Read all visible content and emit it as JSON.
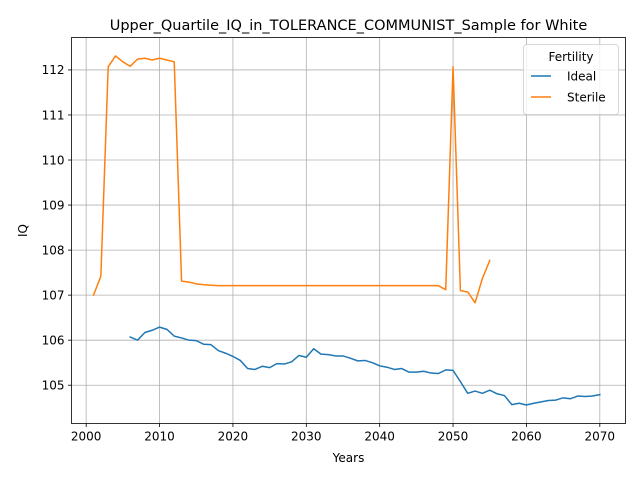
{
  "chart_data": {
    "type": "line",
    "title": "Upper_Quartile_IQ_in_TOLERANCE_COMMUNIST_Sample for White",
    "xlabel": "Years",
    "ylabel": "IQ",
    "xlim": [
      1998,
      2073.5
    ],
    "ylim": [
      104.15,
      112.72
    ],
    "xticks": [
      2000,
      2010,
      2020,
      2030,
      2040,
      2050,
      2060,
      2070
    ],
    "yticks": [
      105,
      106,
      107,
      108,
      109,
      110,
      111,
      112
    ],
    "grid": true,
    "legend": {
      "title": "Fertility",
      "placement": "top-right"
    },
    "series": [
      {
        "name": "Ideal",
        "color": "#1f77b4",
        "x": [
          2006,
          2007,
          2008,
          2009,
          2010,
          2011,
          2012,
          2013,
          2014,
          2015,
          2016,
          2017,
          2018,
          2019,
          2020,
          2021,
          2022,
          2023,
          2024,
          2025,
          2026,
          2027,
          2028,
          2029,
          2030,
          2031,
          2032,
          2033,
          2034,
          2035,
          2036,
          2037,
          2038,
          2039,
          2040,
          2041,
          2042,
          2043,
          2044,
          2045,
          2046,
          2047,
          2048,
          2049,
          2050,
          2051,
          2052,
          2053,
          2054,
          2055,
          2056,
          2057,
          2058,
          2059,
          2060,
          2061,
          2062,
          2063,
          2064,
          2065,
          2066,
          2067,
          2068,
          2069,
          2070
        ],
        "y": [
          106.07,
          106.0,
          106.17,
          106.22,
          106.29,
          106.24,
          106.09,
          106.05,
          106.0,
          105.99,
          105.91,
          105.9,
          105.77,
          105.71,
          105.64,
          105.55,
          105.37,
          105.35,
          105.42,
          105.39,
          105.48,
          105.47,
          105.52,
          105.66,
          105.62,
          105.81,
          105.69,
          105.68,
          105.65,
          105.65,
          105.6,
          105.54,
          105.55,
          105.5,
          105.43,
          105.4,
          105.35,
          105.37,
          105.29,
          105.29,
          105.31,
          105.27,
          105.26,
          105.34,
          105.33,
          105.08,
          104.82,
          104.87,
          104.82,
          104.89,
          104.81,
          104.77,
          104.57,
          104.6,
          104.56,
          104.6,
          104.63,
          104.66,
          104.67,
          104.72,
          104.7,
          104.76,
          104.75,
          104.76,
          104.79
        ]
      },
      {
        "name": "Sterile",
        "color": "#ff7f0e",
        "x": [
          2001,
          2002,
          2003,
          2004,
          2005,
          2006,
          2007,
          2008,
          2009,
          2010,
          2011,
          2012,
          2013,
          2014,
          2015,
          2016,
          2017,
          2018,
          2019,
          2020,
          2021,
          2022,
          2023,
          2024,
          2025,
          2026,
          2027,
          2028,
          2029,
          2030,
          2031,
          2032,
          2033,
          2034,
          2035,
          2036,
          2037,
          2038,
          2039,
          2040,
          2041,
          2042,
          2043,
          2044,
          2045,
          2046,
          2047,
          2048,
          2049,
          2050,
          2051,
          2052,
          2053,
          2054,
          2055
        ],
        "y": [
          107.0,
          107.42,
          112.07,
          112.31,
          112.18,
          112.08,
          112.24,
          112.26,
          112.22,
          112.26,
          112.22,
          112.18,
          107.31,
          107.29,
          107.25,
          107.23,
          107.22,
          107.21,
          107.21,
          107.21,
          107.21,
          107.21,
          107.21,
          107.21,
          107.21,
          107.21,
          107.21,
          107.21,
          107.21,
          107.21,
          107.21,
          107.21,
          107.21,
          107.21,
          107.21,
          107.21,
          107.21,
          107.21,
          107.21,
          107.21,
          107.21,
          107.21,
          107.21,
          107.21,
          107.21,
          107.21,
          107.21,
          107.21,
          107.12,
          112.07,
          107.1,
          107.07,
          106.83,
          107.37,
          107.77
        ]
      }
    ]
  }
}
